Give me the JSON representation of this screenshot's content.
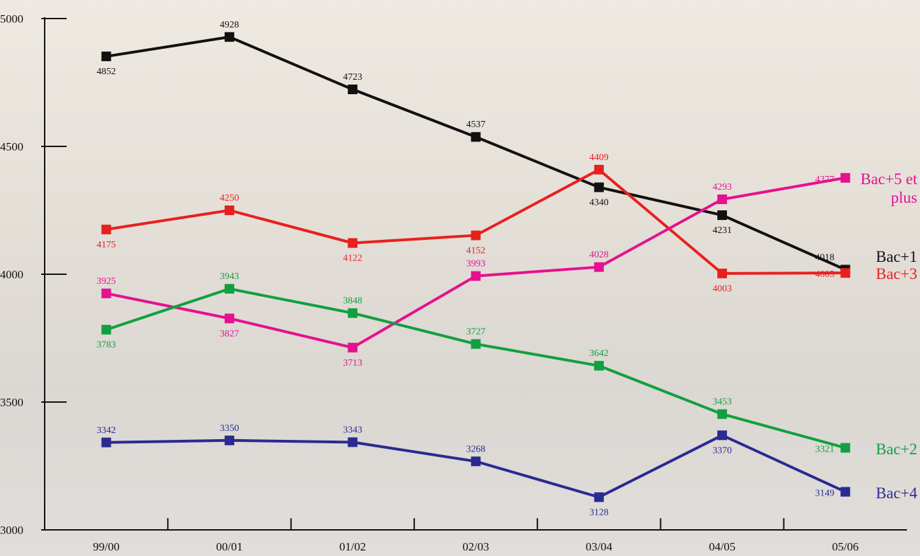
{
  "chart_data": {
    "type": "line",
    "categories": [
      "99/00",
      "00/01",
      "01/02",
      "02/03",
      "03/04",
      "04/05",
      "05/06"
    ],
    "ylim": [
      3000,
      5000
    ],
    "yticks": [
      3000,
      3500,
      4000,
      4500,
      5000
    ],
    "series": [
      {
        "name": "Bac+1",
        "color": "#111111",
        "values": [
          4852,
          4928,
          4723,
          4537,
          4340,
          4231,
          4018
        ]
      },
      {
        "name": "Bac+3",
        "color": "#e8201e",
        "values": [
          4175,
          4250,
          4122,
          4152,
          4409,
          4003,
          4005
        ]
      },
      {
        "name": "Bac+5 et plus",
        "color": "#e5118f",
        "values": [
          3925,
          3827,
          3713,
          3993,
          4028,
          4293,
          4377
        ]
      },
      {
        "name": "Bac+2",
        "color": "#10a040",
        "values": [
          3783,
          3943,
          3848,
          3727,
          3642,
          3453,
          3321
        ]
      },
      {
        "name": "Bac+4",
        "color": "#2a2a90",
        "values": [
          3342,
          3350,
          3343,
          3268,
          3128,
          3370,
          3149
        ]
      }
    ]
  }
}
